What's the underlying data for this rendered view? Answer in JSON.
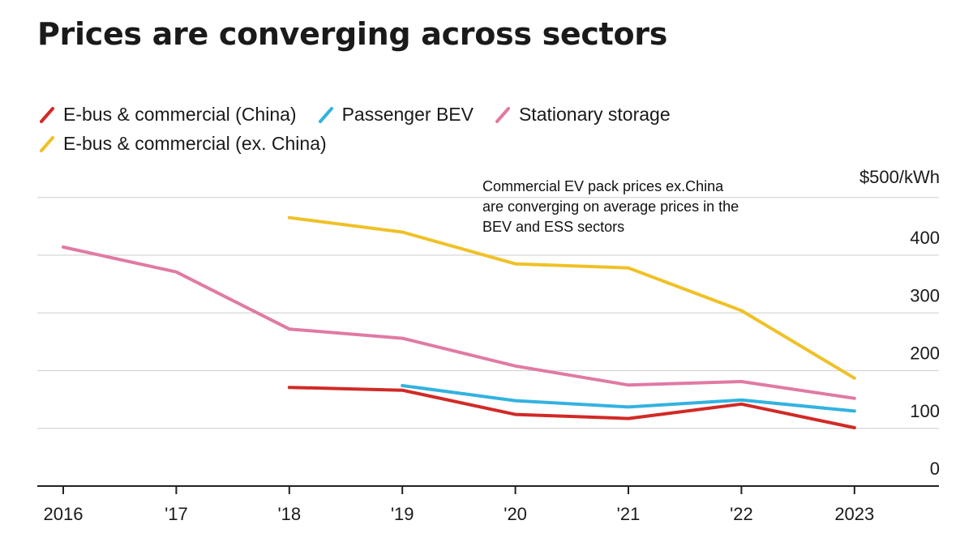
{
  "chart_data": {
    "type": "line",
    "title": "Prices are converging across sectors",
    "categories": [
      "2016",
      "'17",
      "'18",
      "'19",
      "'20",
      "'21",
      "'22",
      "2023"
    ],
    "y_unit_label": "$500/kWh",
    "y_ticks": [
      "0",
      "100",
      "200",
      "300",
      "400"
    ],
    "ylim": [
      0,
      500
    ],
    "grid": true,
    "annotation": [
      "Commercial EV pack prices ex.China",
      "are converging on average prices in the",
      "BEV and ESS sectors"
    ],
    "series": [
      {
        "name": "E-bus & commercial (China)",
        "color": "#d12a26",
        "values": [
          null,
          null,
          171,
          166,
          124,
          117,
          142,
          101
        ]
      },
      {
        "name": "Passenger BEV",
        "color": "#33b2e0",
        "values": [
          null,
          null,
          null,
          174,
          148,
          137,
          149,
          130
        ]
      },
      {
        "name": "Stationary storage",
        "color": "#e07aa4",
        "values": [
          414,
          371,
          272,
          256,
          208,
          175,
          181,
          152
        ]
      },
      {
        "name": "E-bus & commercial (ex. China)",
        "color": "#f0c126",
        "values": [
          null,
          null,
          465,
          440,
          385,
          378,
          304,
          187
        ]
      }
    ]
  }
}
